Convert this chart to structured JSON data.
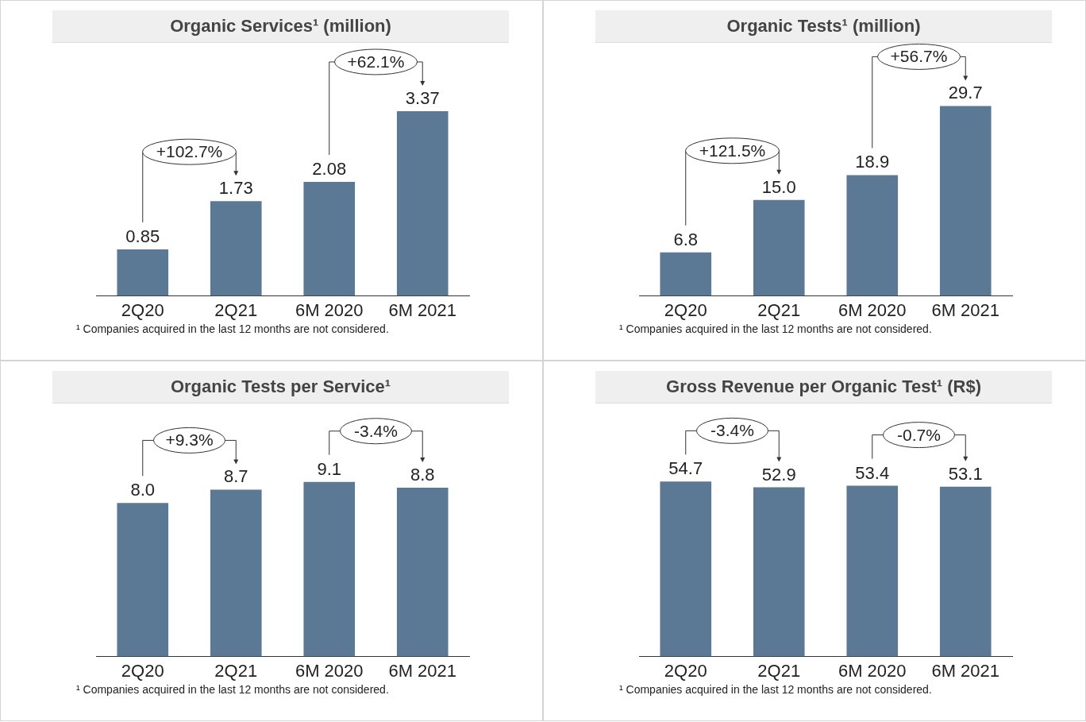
{
  "chart_data": [
    {
      "type": "bar",
      "title": "Organic Services¹ (million)",
      "categories": [
        "2Q20",
        "2Q21",
        "6M 2020",
        "6M 2021"
      ],
      "values": [
        0.85,
        1.73,
        2.08,
        3.37
      ],
      "color": "#5b7895",
      "value_labels": [
        "0.85",
        "1.73",
        "2.08",
        "3.37"
      ],
      "grid": false,
      "legend": false,
      "annotations": [
        "+102.7%",
        "+62.1%",
        "¹ Companies acquired in the last 12 months are not considered."
      ]
    },
    {
      "type": "bar",
      "title": "Organic Tests¹ (million)",
      "categories": [
        "2Q20",
        "2Q21",
        "6M 2020",
        "6M 2021"
      ],
      "values": [
        6.8,
        15.0,
        18.9,
        29.7
      ],
      "color": "#5b7895",
      "value_labels": [
        "6.8",
        "15.0",
        "18.9",
        "29.7"
      ],
      "grid": false,
      "legend": false,
      "annotations": [
        "+121.5%",
        "+56.7%",
        "¹ Companies acquired in the last 12 months are not considered."
      ]
    },
    {
      "type": "bar",
      "title": "Organic Tests per Service¹",
      "categories": [
        "2Q20",
        "2Q21",
        "6M 2020",
        "6M 2021"
      ],
      "values": [
        8.0,
        8.7,
        9.1,
        8.8
      ],
      "color": "#5b7895",
      "value_labels": [
        "8.0",
        "8.7",
        "9.1",
        "8.8"
      ],
      "grid": false,
      "legend": false,
      "annotations": [
        "+9.3%",
        "-3.4%",
        "¹ Companies acquired in the last 12 months are not considered."
      ]
    },
    {
      "type": "bar",
      "title": "Gross Revenue per Organic Test¹ (R$)",
      "categories": [
        "2Q20",
        "2Q21",
        "6M 2020",
        "6M 2021"
      ],
      "values": [
        54.7,
        52.9,
        53.4,
        53.1
      ],
      "color": "#5b7895",
      "value_labels": [
        "54.7",
        "52.9",
        "53.4",
        "53.1"
      ],
      "grid": false,
      "legend": false,
      "annotations": [
        "-3.4%",
        "-0.7%",
        "¹ Companies acquired in the last 12 months are not considered."
      ]
    }
  ]
}
